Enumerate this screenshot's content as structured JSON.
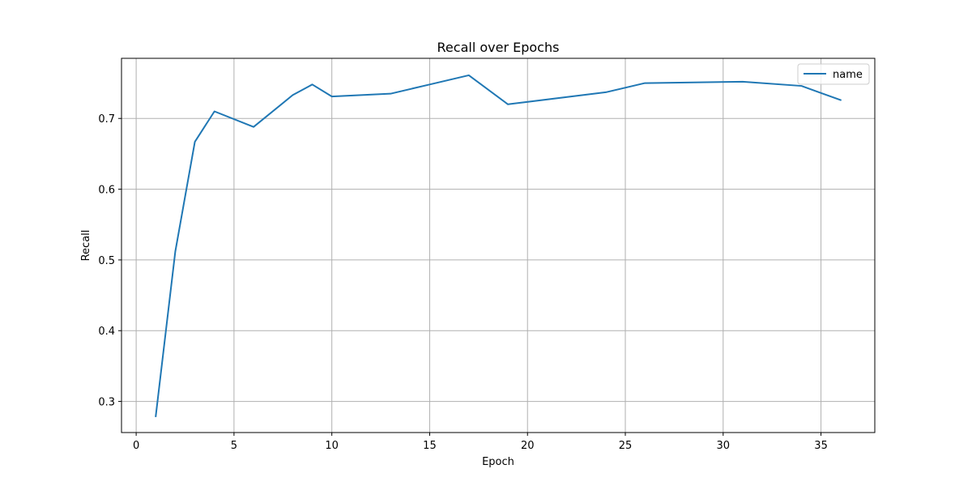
{
  "chart_data": {
    "type": "line",
    "title": "Recall over Epochs",
    "xlabel": "Epoch",
    "ylabel": "Recall",
    "xlim": [
      -0.75,
      37.75
    ],
    "ylim": [
      0.256,
      0.785
    ],
    "xticks": [
      0,
      5,
      10,
      15,
      20,
      25,
      30,
      35
    ],
    "yticks": [
      0.3,
      0.4,
      0.5,
      0.6,
      0.7
    ],
    "grid": true,
    "legend_position": "top-right",
    "series": [
      {
        "name": "name",
        "color": "#1f77b4",
        "x": [
          1,
          2,
          3,
          4,
          6,
          8,
          9,
          10,
          13,
          15,
          17,
          19,
          24,
          26,
          31,
          34,
          36
        ],
        "y": [
          0.279,
          0.512,
          0.667,
          0.71,
          0.688,
          0.733,
          0.748,
          0.731,
          0.735,
          0.748,
          0.761,
          0.72,
          0.737,
          0.75,
          0.752,
          0.746,
          0.726
        ]
      }
    ]
  }
}
